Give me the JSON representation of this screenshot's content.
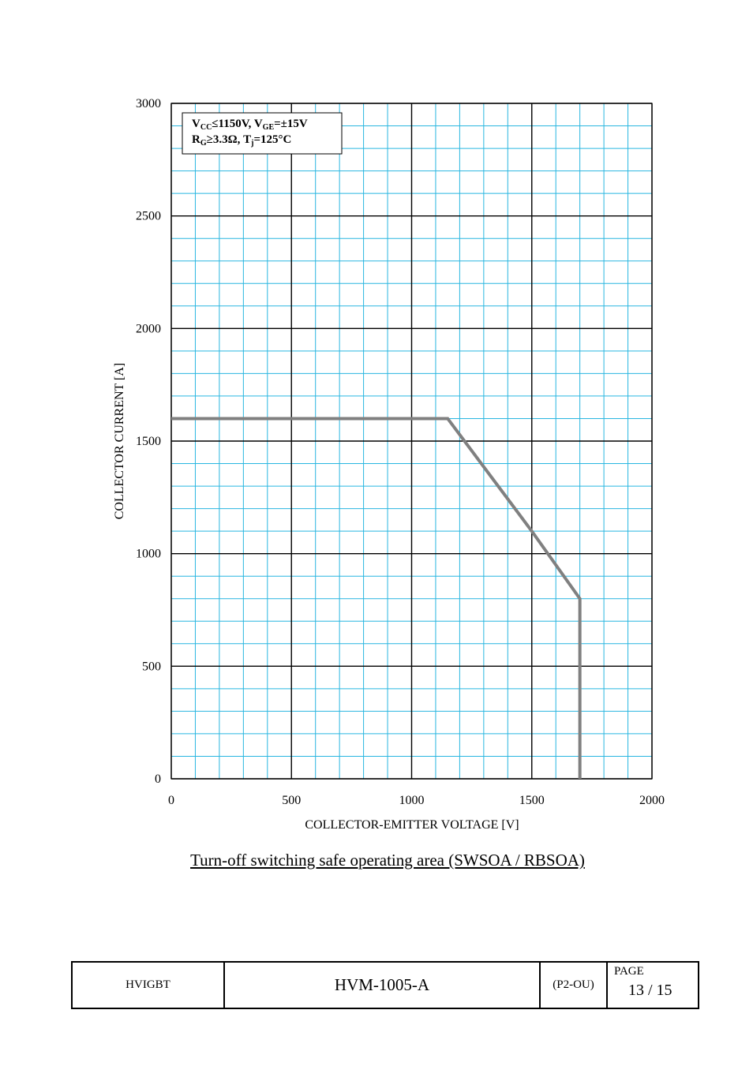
{
  "chart_data": {
    "type": "line",
    "title": "Turn-off switching safe operating area (SWSOA / RBSOA)",
    "xlabel": "COLLECTOR-EMITTER VOLTAGE [V]",
    "ylabel": "COLLECTOR CURRENT [A]",
    "xlim": [
      0,
      2000
    ],
    "ylim": [
      0,
      3000
    ],
    "x_ticks": [
      0,
      500,
      1000,
      1500,
      2000
    ],
    "y_ticks": [
      0,
      500,
      1000,
      1500,
      2000,
      2500,
      3000
    ],
    "x_minor_step": 100,
    "y_minor_step": 100,
    "grid": true,
    "major_grid_color": "#000000",
    "minor_grid_color": "#29b6e0",
    "series": [
      {
        "color": "#808080",
        "x": [
          0,
          1150,
          1500,
          1700,
          1700
        ],
        "y": [
          1600,
          1600,
          1100,
          800,
          0
        ]
      }
    ],
    "annotation": {
      "line1": {
        "v": "V",
        "cc": "CC",
        "mid": "≤1150V, V",
        "ge": "GE",
        "end": "=±15V"
      },
      "line2": {
        "r": "R",
        "g": "G",
        "mid": "≥3.3Ω, T",
        "j": "j",
        "end": "=125°C"
      },
      "placement": "top-left"
    }
  },
  "caption": "Turn-off switching safe operating area (SWSOA / RBSOA)",
  "footer": {
    "product": "HVIGBT",
    "doc_number": "HVM-1005-A",
    "code": "(P2-OU)",
    "page_label": "PAGE",
    "page_number": "13 / 15"
  }
}
